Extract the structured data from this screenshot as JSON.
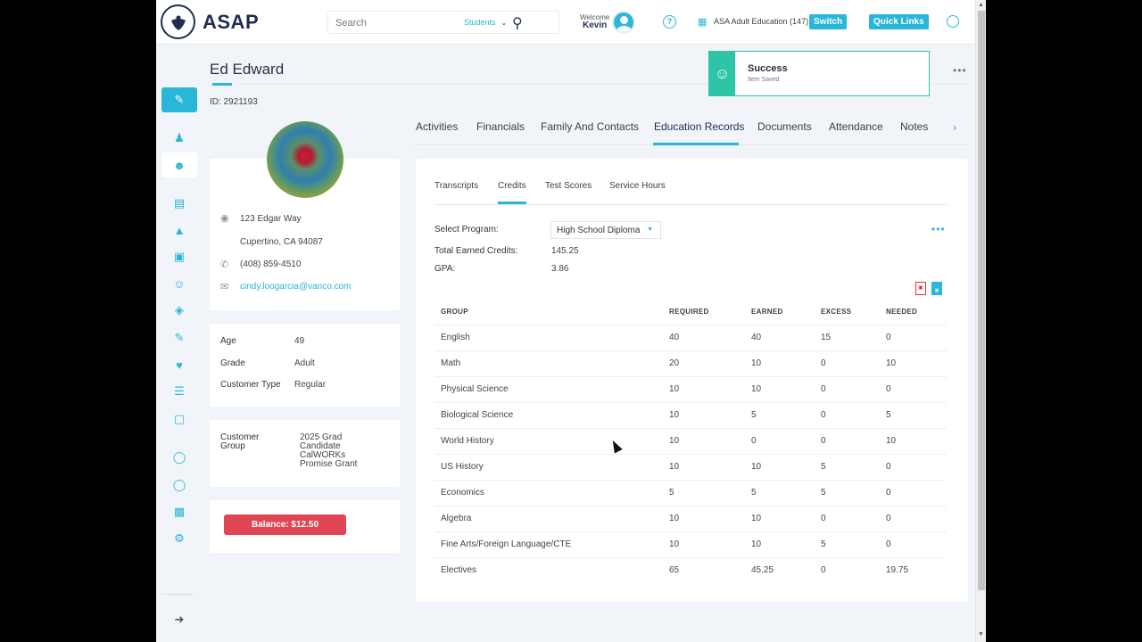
{
  "header": {
    "logo_text": "ASAP",
    "search_placeholder": "Search",
    "search_scope": "Students",
    "welcome_label": "Welcome",
    "user_name": "Kevin",
    "org_name": "ASA Adult Education (147)",
    "switch_label": "Switch",
    "quick_links_label": "Quick Links"
  },
  "toast": {
    "title": "Success",
    "message": "Item Saved"
  },
  "profile": {
    "name": "Ed Edward",
    "id": "ID: 2921193",
    "address_line1": "123 Edgar Way",
    "address_line2": "Cupertino, CA 94087",
    "phone": "(408) 859-4510",
    "email": "cindy.loogarcia@vanco.com"
  },
  "info": {
    "age_label": "Age",
    "age": "49",
    "grade_label": "Grade",
    "grade": "Adult",
    "type_label": "Customer Type",
    "type": "Regular"
  },
  "group": {
    "label_line1": "Customer",
    "label_line2": "Group",
    "values": [
      "2025 Grad",
      "Candidate",
      "CalWORKs",
      "Promise Grant"
    ]
  },
  "balance_label": "Balance: $12.50",
  "tabs": [
    "Activities",
    "Financials",
    "Family And Contacts",
    "Education Records",
    "Documents",
    "Attendance",
    "Notes"
  ],
  "subtabs": [
    "Transcripts",
    "Credits",
    "Test Scores",
    "Service Hours"
  ],
  "credits": {
    "program_label": "Select Program:",
    "program_value": "High School Diploma",
    "total_label": "Total Earned Credits:",
    "total_value": "145.25",
    "gpa_label": "GPA:",
    "gpa_value": "3.86"
  },
  "table": {
    "headers": [
      "GROUP",
      "REQUIRED",
      "EARNED",
      "EXCESS",
      "NEEDED"
    ],
    "rows": [
      [
        "English",
        "40",
        "40",
        "15",
        "0"
      ],
      [
        "Math",
        "20",
        "10",
        "0",
        "10"
      ],
      [
        "Physical Science",
        "10",
        "10",
        "0",
        "0"
      ],
      [
        "Biological Science",
        "10",
        "5",
        "0",
        "5"
      ],
      [
        "World History",
        "10",
        "0",
        "0",
        "10"
      ],
      [
        "US History",
        "10",
        "10",
        "5",
        "0"
      ],
      [
        "Economics",
        "5",
        "5",
        "5",
        "0"
      ],
      [
        "Algebra",
        "10",
        "10",
        "0",
        "0"
      ],
      [
        "Fine Arts/Foreign Language/CTE",
        "10",
        "10",
        "5",
        "0"
      ],
      [
        "Electives",
        "65",
        "45.25",
        "0",
        "19.75"
      ]
    ]
  },
  "colors": {
    "accent": "#29b6d8",
    "brand": "#1f2d4e",
    "success": "#2ec4a6",
    "danger": "#e04654"
  }
}
